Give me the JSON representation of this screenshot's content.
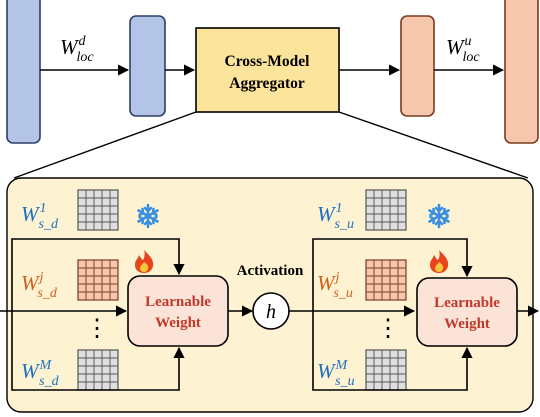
{
  "top": {
    "left_weight": {
      "main": "W",
      "sup": "d",
      "sub": "loc"
    },
    "right_weight": {
      "main": "W",
      "sup": "u",
      "sub": "loc"
    },
    "aggregator_line1": "Cross-Model",
    "aggregator_line2": "Aggregator"
  },
  "detail": {
    "activation_label": "Activation",
    "activation_symbol": "h",
    "learnable_line1": "Learnable",
    "learnable_line2": "Weight",
    "down": [
      {
        "main": "W",
        "sup": "1",
        "sub": "s_d"
      },
      {
        "main": "W",
        "sup": "j",
        "sub": "s_d"
      },
      {
        "main": "W",
        "sup": "M",
        "sub": "s_d"
      }
    ],
    "up": [
      {
        "main": "W",
        "sup": "1",
        "sub": "s_u"
      },
      {
        "main": "W",
        "sup": "j",
        "sub": "s_u"
      },
      {
        "main": "W",
        "sup": "M",
        "sub": "s_u"
      }
    ],
    "ellipsis": "⋮"
  },
  "icons": [
    "snowflake-icon",
    "fire-icon"
  ],
  "colors": {
    "blue_block": "#b4c4e6",
    "salmon_block": "#f6c6ad",
    "aggregator": "#fde49c",
    "panel": "#fdf2d2",
    "learnable": "#fbe3d8",
    "blue_text": "#1f6fbf",
    "orange_text": "#d0601a",
    "learnable_text": "#c0392b",
    "snow": "#3a8fe0"
  }
}
